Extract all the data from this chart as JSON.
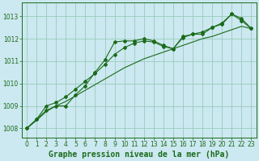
{
  "title": "Graphe pression niveau de la mer (hPa)",
  "bg_color": "#cce8f0",
  "grid_color": "#99ccbb",
  "line_color": "#1a6b1a",
  "marker_color": "#1a6b1a",
  "xlim": [
    -0.5,
    23.5
  ],
  "ylim": [
    1007.6,
    1013.6
  ],
  "yticks": [
    1008,
    1009,
    1010,
    1011,
    1012,
    1013
  ],
  "xticks": [
    0,
    1,
    2,
    3,
    4,
    5,
    6,
    7,
    8,
    9,
    10,
    11,
    12,
    13,
    14,
    15,
    16,
    17,
    18,
    19,
    20,
    21,
    22,
    23
  ],
  "series_main": [
    1008.0,
    1008.4,
    1008.8,
    1009.0,
    1009.0,
    1009.5,
    1009.9,
    1010.5,
    1011.05,
    1011.85,
    1011.9,
    1011.9,
    1012.0,
    1011.9,
    1011.7,
    1011.55,
    1012.1,
    1012.2,
    1012.2,
    1012.5,
    1012.7,
    1013.1,
    1012.8,
    1012.45
  ],
  "series_mid": [
    1008.0,
    1008.4,
    1009.0,
    1009.15,
    1009.4,
    1009.75,
    1010.1,
    1010.45,
    1010.85,
    1011.3,
    1011.6,
    1011.8,
    1011.9,
    1011.85,
    1011.65,
    1011.55,
    1012.05,
    1012.2,
    1012.3,
    1012.5,
    1012.65,
    1013.1,
    1012.9,
    1012.45
  ],
  "series_low": [
    1008.0,
    1008.35,
    1008.75,
    1009.0,
    1009.2,
    1009.45,
    1009.7,
    1009.95,
    1010.2,
    1010.45,
    1010.7,
    1010.9,
    1011.1,
    1011.25,
    1011.4,
    1011.55,
    1011.7,
    1011.85,
    1012.0,
    1012.1,
    1012.25,
    1012.4,
    1012.55,
    1012.45
  ],
  "xlabel_fontsize": 7,
  "tick_fontsize": 5.5
}
